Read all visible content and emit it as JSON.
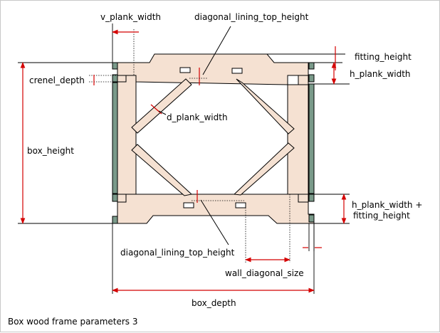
{
  "labels": {
    "v_plank_width": "v_plank_width",
    "diagonal_lining_top_height_top": "diagonal_lining_top_height",
    "fitting_height": "fitting_height",
    "h_plank_width": "h_plank_width",
    "crenel_depth": "crenel_depth",
    "d_plank_width": "d_plank_width",
    "box_height": "box_height",
    "h_plank_width_fitting_line1": "h_plank_width +",
    "h_plank_width_fitting_line2": "fitting_height",
    "diagonal_lining_top_height_bottom": "diagonal_lining_top_height",
    "wall_diagonal_size": "wall_diagonal_size",
    "box_depth": "box_depth"
  },
  "caption": "Box wood frame parameters 3",
  "colors": {
    "plank_fill": "#f5e1d2",
    "vertical_plank_fill": "#7a9a8a",
    "dimension_line": "#d40000",
    "outline": "#000000"
  }
}
